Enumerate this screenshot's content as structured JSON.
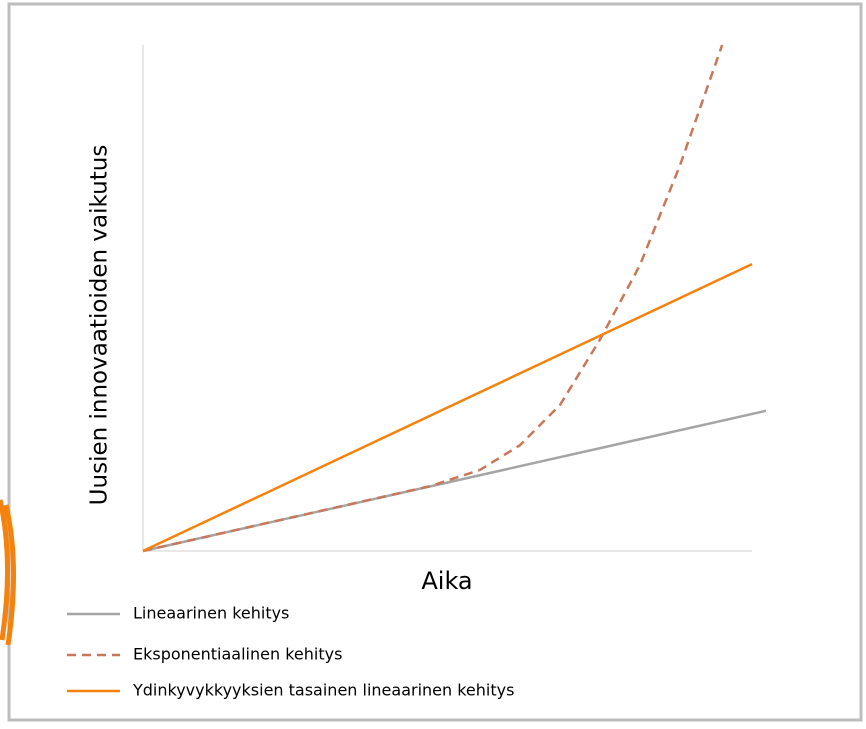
{
  "chart_data": {
    "type": "line",
    "x_label": "Aika",
    "y_label": "Uusien innovaatioiden vaikutus",
    "xlim": [
      0,
      100
    ],
    "ylim": [
      0,
      100
    ],
    "series": [
      {
        "name": "Lineaarinen kehitys",
        "color": "#a5a5a5",
        "dash": false,
        "x": [
          0,
          102.3
        ],
        "values": [
          0,
          27.7
        ]
      },
      {
        "name": "Eksponentiaalinen kehitys",
        "color": "#c8775a",
        "dash": true,
        "x": [
          0,
          47.1,
          55.3,
          61.9,
          68.5,
          75.0,
          81.6,
          88.2,
          95.1
        ],
        "values": [
          0,
          12.8,
          16.0,
          20.9,
          28.9,
          41.7,
          56.5,
          76.3,
          100
        ]
      },
      {
        "name": "Ydinkyvykkyyksien tasainen lineaarinen kehitys",
        "color": "#f5820d",
        "dash": false,
        "x": [
          0,
          100
        ],
        "values": [
          0,
          56.7
        ]
      }
    ]
  }
}
